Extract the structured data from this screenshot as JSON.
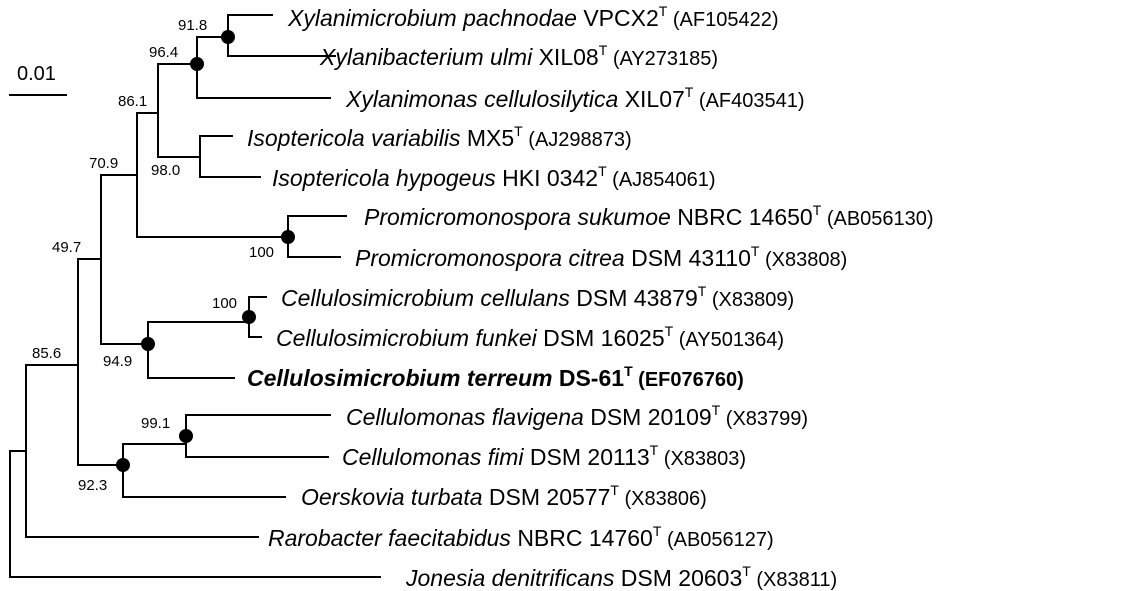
{
  "scale_bar": {
    "label": "0.01"
  },
  "taxa": [
    {
      "genus_species": "Xylanimicrobium pachnodae",
      "strain": "VPCX2",
      "type_mark": "T",
      "accession": "(AF105422)",
      "bold": false
    },
    {
      "genus_species": "Xylanibacterium ulmi",
      "strain": "XIL08",
      "type_mark": "T",
      "accession": "(AY273185)",
      "bold": false
    },
    {
      "genus_species": "Xylanimonas cellulosilytica",
      "strain": "XIL07",
      "type_mark": "T",
      "accession": "(AF403541)",
      "bold": false
    },
    {
      "genus_species": "Isoptericola variabilis",
      "strain": "MX5",
      "type_mark": "T",
      "accession": "(AJ298873)",
      "bold": false
    },
    {
      "genus_species": "Isoptericola hypogeus",
      "strain": "HKI 0342",
      "type_mark": "T",
      "accession": "(AJ854061)",
      "bold": false
    },
    {
      "genus_species": "Promicromonospora sukumoe",
      "strain": "NBRC 14650",
      "type_mark": "T",
      "accession": "(AB056130)",
      "bold": false
    },
    {
      "genus_species": "Promicromonospora citrea",
      "strain": "DSM 43110",
      "type_mark": "T",
      "accession": "(X83808)",
      "bold": false
    },
    {
      "genus_species": "Cellulosimicrobium cellulans",
      "strain": "DSM 43879",
      "type_mark": "T",
      "accession": "(X83809)",
      "bold": false
    },
    {
      "genus_species": "Cellulosimicrobium funkei",
      "strain": "DSM 16025",
      "type_mark": "T",
      "accession": "(AY501364)",
      "bold": false
    },
    {
      "genus_species": "Cellulosimicrobium terreum",
      "strain": "DS-61",
      "type_mark": "T",
      "accession": "(EF076760)",
      "bold": true
    },
    {
      "genus_species": "Cellulomonas flavigena",
      "strain": "DSM 20109",
      "type_mark": "T",
      "accession": "(X83799)",
      "bold": false
    },
    {
      "genus_species": "Cellulomonas fimi",
      "strain": "DSM 20113",
      "type_mark": "T",
      "accession": "(X83803)",
      "bold": false
    },
    {
      "genus_species": "Oerskovia turbata",
      "strain": "DSM 20577",
      "type_mark": "T",
      "accession": "(X83806)",
      "bold": false
    },
    {
      "genus_species": "Rarobacter faecitabidus",
      "strain": "NBRC 14760",
      "type_mark": "T",
      "accession": "(AB056127)",
      "bold": false
    },
    {
      "genus_species": "Jonesia denitrificans",
      "strain": "DSM 20603",
      "type_mark": "T",
      "accession": "(X83811)",
      "bold": false
    }
  ],
  "bootstrap_values": [
    "91.8",
    "96.4",
    "86.1",
    "98.0",
    "70.9",
    "100",
    "49.7",
    "100",
    "94.9",
    "85.6",
    "99.1",
    "92.3"
  ]
}
